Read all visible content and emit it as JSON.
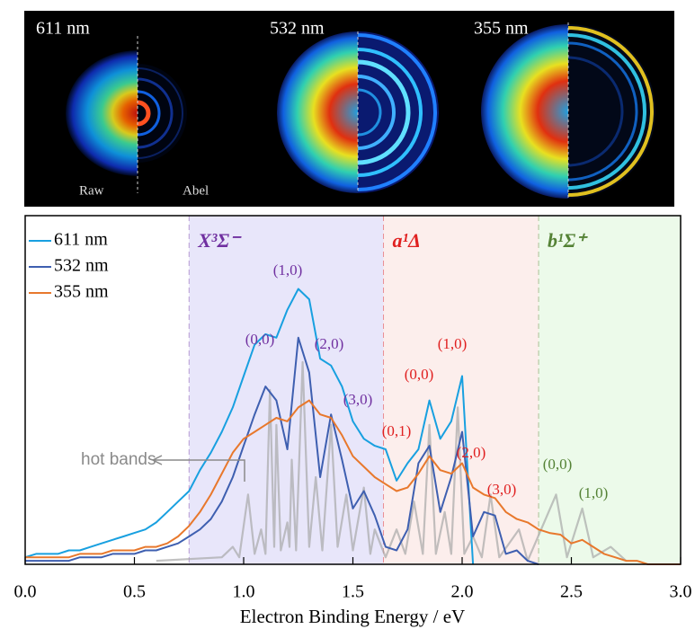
{
  "image_panel": {
    "labels": [
      "611 nm",
      "532 nm",
      "355 nm"
    ],
    "raw_label": "Raw",
    "abel_label": "Abel"
  },
  "chart_data": {
    "type": "line",
    "x_label": "Electron Binding Energy / eV",
    "x": [
      0,
      0.05,
      0.1,
      0.15,
      0.2,
      0.25,
      0.3,
      0.35,
      0.4,
      0.45,
      0.5,
      0.55,
      0.6,
      0.65,
      0.7,
      0.75,
      0.8,
      0.85,
      0.9,
      0.95,
      1,
      1.05,
      1.1,
      1.15,
      1.2,
      1.25,
      1.3,
      1.35,
      1.4,
      1.45,
      1.5,
      1.55,
      1.6,
      1.65,
      1.7,
      1.75,
      1.8,
      1.85,
      1.9,
      1.95,
      2,
      2.05,
      2.1,
      2.15,
      2.2,
      2.25,
      2.3,
      2.35,
      2.4,
      2.45,
      2.5,
      2.55,
      2.6,
      2.65,
      2.7,
      2.75,
      2.8,
      2.85,
      2.9,
      2.95,
      3
    ],
    "xlim": [
      0,
      3
    ],
    "xticks": [
      {
        "value": 0,
        "label": "0.0"
      },
      {
        "value": 0.5,
        "label": "0.5"
      },
      {
        "value": 1,
        "label": "1.0"
      },
      {
        "value": 1.5,
        "label": "1.5"
      },
      {
        "value": 2,
        "label": "2.0"
      },
      {
        "value": 2.5,
        "label": "2.5"
      },
      {
        "value": 3,
        "label": "3.0"
      }
    ],
    "ylim": [
      0,
      1
    ],
    "regions": [
      {
        "label": "X³Σ⁻",
        "xlim": [
          0.75,
          1.64
        ],
        "color": "#7030a0"
      },
      {
        "label": "a¹Δ",
        "xlim": [
          1.64,
          2.35
        ],
        "color": "#e02020"
      },
      {
        "label": "b¹Σ⁺",
        "xlim": [
          2.35,
          3
        ],
        "color": "#548235"
      }
    ],
    "series": [
      {
        "x": [
          0.6,
          0.9,
          0.95,
          0.98,
          1.02,
          1.05,
          1.08,
          1.1,
          1.12,
          1.14,
          1.15,
          1.17,
          1.2,
          1.21,
          1.22,
          1.24,
          1.27,
          1.3,
          1.33,
          1.36,
          1.4,
          1.43,
          1.47,
          1.5,
          1.55,
          1.58,
          1.6,
          1.65,
          1.7,
          1.74,
          1.78,
          1.82,
          1.85,
          1.88,
          1.92,
          1.95,
          1.98,
          2.01,
          2.05,
          2.09,
          2.13,
          2.17,
          2.26,
          2.3,
          2.43,
          2.48,
          2.55,
          2.6,
          2.68,
          2.75
        ],
        "values": [
          0.01,
          0.02,
          0.05,
          0.02,
          0.2,
          0.03,
          0.1,
          0.03,
          0.5,
          0.05,
          0.4,
          0.04,
          0.12,
          0.05,
          0.3,
          0.04,
          0.58,
          0.05,
          0.25,
          0.04,
          0.4,
          0.05,
          0.2,
          0.04,
          0.22,
          0.03,
          0.1,
          0.02,
          0.1,
          0.03,
          0.18,
          0.03,
          0.4,
          0.03,
          0.15,
          0.03,
          0.45,
          0.03,
          0.08,
          0.02,
          0.2,
          0.02,
          0.1,
          0.01,
          0.2,
          0.02,
          0.16,
          0.02,
          0.05,
          0.01
        ],
        "color": "#a8a8a8"
      },
      {
        "name": "611 nm",
        "color": "#18a0e0",
        "values": [
          0.02,
          0.03,
          0.03,
          0.03,
          0.04,
          0.04,
          0.05,
          0.06,
          0.07,
          0.08,
          0.09,
          0.1,
          0.12,
          0.15,
          0.18,
          0.21,
          0.27,
          0.32,
          0.38,
          0.45,
          0.54,
          0.63,
          0.66,
          0.65,
          0.73,
          0.79,
          0.76,
          0.59,
          0.57,
          0.51,
          0.41,
          0.36,
          0.34,
          0.33,
          0.24,
          0.29,
          0.33,
          0.47,
          0.36,
          0.41,
          0.54,
          0,
          null,
          null,
          null,
          null,
          null,
          null,
          null,
          null,
          null,
          null,
          null,
          null,
          null,
          null,
          null,
          null,
          null,
          null,
          null
        ]
      },
      {
        "name": "532 nm",
        "color": "#3e5fb0",
        "values": [
          0.01,
          0.01,
          0.01,
          0.01,
          0.01,
          0.02,
          0.02,
          0.02,
          0.03,
          0.03,
          0.03,
          0.04,
          0.04,
          0.05,
          0.06,
          0.08,
          0.1,
          0.13,
          0.18,
          0.25,
          0.34,
          0.43,
          0.51,
          0.47,
          0.33,
          0.65,
          0.55,
          0.25,
          0.43,
          0.3,
          0.16,
          0.21,
          0.14,
          0.05,
          0.04,
          0.1,
          0.29,
          0.34,
          0.15,
          0.25,
          0.38,
          0.08,
          0.15,
          0.14,
          0.03,
          0.04,
          0.01,
          0,
          null,
          null,
          null,
          null,
          null,
          null,
          null,
          null,
          null,
          null,
          null,
          null,
          null
        ]
      },
      {
        "name": "355 nm",
        "color": "#e8782c",
        "values": [
          0.02,
          0.02,
          0.02,
          0.02,
          0.02,
          0.03,
          0.03,
          0.03,
          0.04,
          0.04,
          0.04,
          0.05,
          0.05,
          0.06,
          0.08,
          0.11,
          0.15,
          0.2,
          0.26,
          0.32,
          0.36,
          0.38,
          0.4,
          0.42,
          0.41,
          0.45,
          0.47,
          0.43,
          0.42,
          0.37,
          0.31,
          0.28,
          0.25,
          0.23,
          0.21,
          0.22,
          0.26,
          0.31,
          0.27,
          0.26,
          0.29,
          0.22,
          0.2,
          0.19,
          0.15,
          0.13,
          0.12,
          0.1,
          0.09,
          0.085,
          0.06,
          0.07,
          0.05,
          0.03,
          0.02,
          0.01,
          0.01,
          0,
          0,
          0,
          0
        ]
      }
    ],
    "annotations": [
      "(0,0)",
      "(1,0)",
      "(2,0)",
      "(3,0)",
      "(1,0)",
      "(0,0)",
      "(0,1)",
      "(2,0)",
      "(3,0)",
      "(0,0)",
      "(1,0)",
      "hot bands"
    ]
  }
}
